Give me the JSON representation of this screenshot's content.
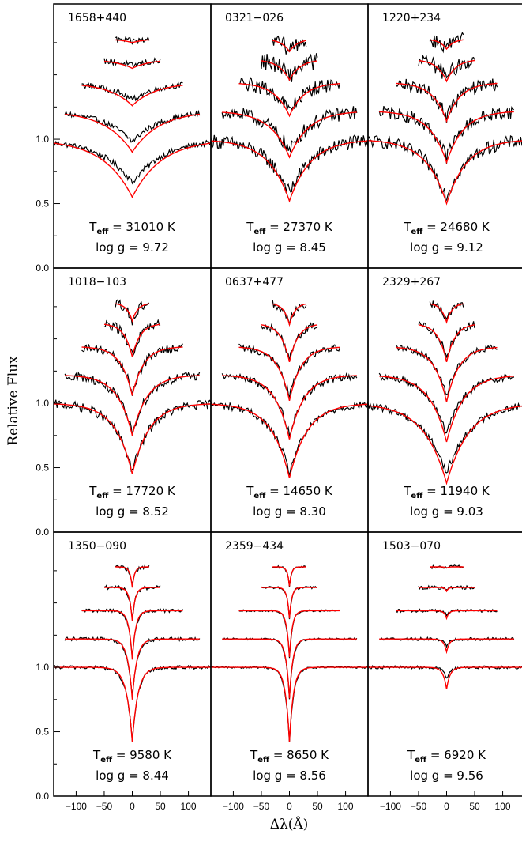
{
  "chart_data": {
    "type": "line",
    "ylabel": "Relative Flux",
    "xlabel": "Δλ(Å)",
    "xlim": [
      -140,
      140
    ],
    "ylim": [
      0.0,
      2.05
    ],
    "x_ticks": [
      -100,
      -50,
      0,
      50,
      100
    ],
    "x_tick_labels": [
      "−100",
      "−50",
      "0",
      "50",
      "100"
    ],
    "y_ticks": [
      0.0,
      0.5,
      1.0
    ],
    "y_tick_labels": [
      "0.0",
      "0.5",
      "1.0"
    ],
    "series_colors": {
      "observed": "#000000",
      "model": "#ff0000"
    },
    "profile_offsets": [
      0,
      0.22,
      0.44,
      0.62,
      0.78
    ],
    "profile_half_widths": [
      140,
      120,
      90,
      50,
      30
    ],
    "panels": [
      {
        "name": "1658+440",
        "teff_value": "31010",
        "logg_value": "9.72",
        "model_depths": [
          0.45,
          0.32,
          0.18,
          0.07,
          0.03
        ],
        "model_widths": [
          52,
          48,
          42,
          32,
          24
        ],
        "obs_depth_scale": 0.75,
        "noise": 0.022
      },
      {
        "name": "0321−026",
        "teff_value": "27370",
        "logg_value": "8.45",
        "model_depths": [
          0.48,
          0.36,
          0.26,
          0.16,
          0.1
        ],
        "model_widths": [
          38,
          34,
          26,
          19,
          15
        ],
        "obs_depth_scale": 0.88,
        "noise": 0.055
      },
      {
        "name": "1220+234",
        "teff_value": "24680",
        "logg_value": "9.12",
        "model_depths": [
          0.5,
          0.4,
          0.3,
          0.17,
          0.08
        ],
        "model_widths": [
          36,
          30,
          24,
          17,
          13
        ],
        "obs_depth_scale": 0.9,
        "noise": 0.05
      },
      {
        "name": "1018−103",
        "teff_value": "17720",
        "logg_value": "8.52",
        "model_depths": [
          0.55,
          0.47,
          0.38,
          0.26,
          0.14
        ],
        "model_widths": [
          30,
          26,
          20,
          14,
          10
        ],
        "obs_depth_scale": 0.96,
        "noise": 0.035
      },
      {
        "name": "0637+477",
        "teff_value": "14650",
        "logg_value": "8.30",
        "model_depths": [
          0.58,
          0.5,
          0.42,
          0.3,
          0.17
        ],
        "model_widths": [
          32,
          26,
          21,
          15,
          10
        ],
        "obs_depth_scale": 0.93,
        "noise": 0.028
      },
      {
        "name": "2329+267",
        "teff_value": "11940",
        "logg_value": "9.03",
        "model_depths": [
          0.62,
          0.52,
          0.43,
          0.3,
          0.15
        ],
        "model_widths": [
          40,
          30,
          22,
          15,
          10
        ],
        "obs_depth_scale": 0.88,
        "noise": 0.028
      },
      {
        "name": "1350−090",
        "teff_value": "9580",
        "logg_value": "8.44",
        "model_depths": [
          0.58,
          0.47,
          0.38,
          0.26,
          0.16
        ],
        "model_widths": [
          10,
          8,
          6,
          5,
          4
        ],
        "obs_depth_scale": 0.97,
        "noise": 0.014
      },
      {
        "name": "2359−434",
        "teff_value": "8650",
        "logg_value": "8.56",
        "model_depths": [
          0.58,
          0.46,
          0.36,
          0.24,
          0.15
        ],
        "model_widths": [
          7,
          6,
          5,
          4,
          3.5
        ],
        "obs_depth_scale": 1.0,
        "noise": 0.008
      },
      {
        "name": "1503−070",
        "teff_value": "6920",
        "logg_value": "9.56",
        "model_depths": [
          0.17,
          0.1,
          0.06,
          0.03,
          0.01
        ],
        "model_widths": [
          6,
          5,
          4,
          3,
          3
        ],
        "obs_depth_scale": 0.55,
        "noise": 0.012
      }
    ]
  }
}
